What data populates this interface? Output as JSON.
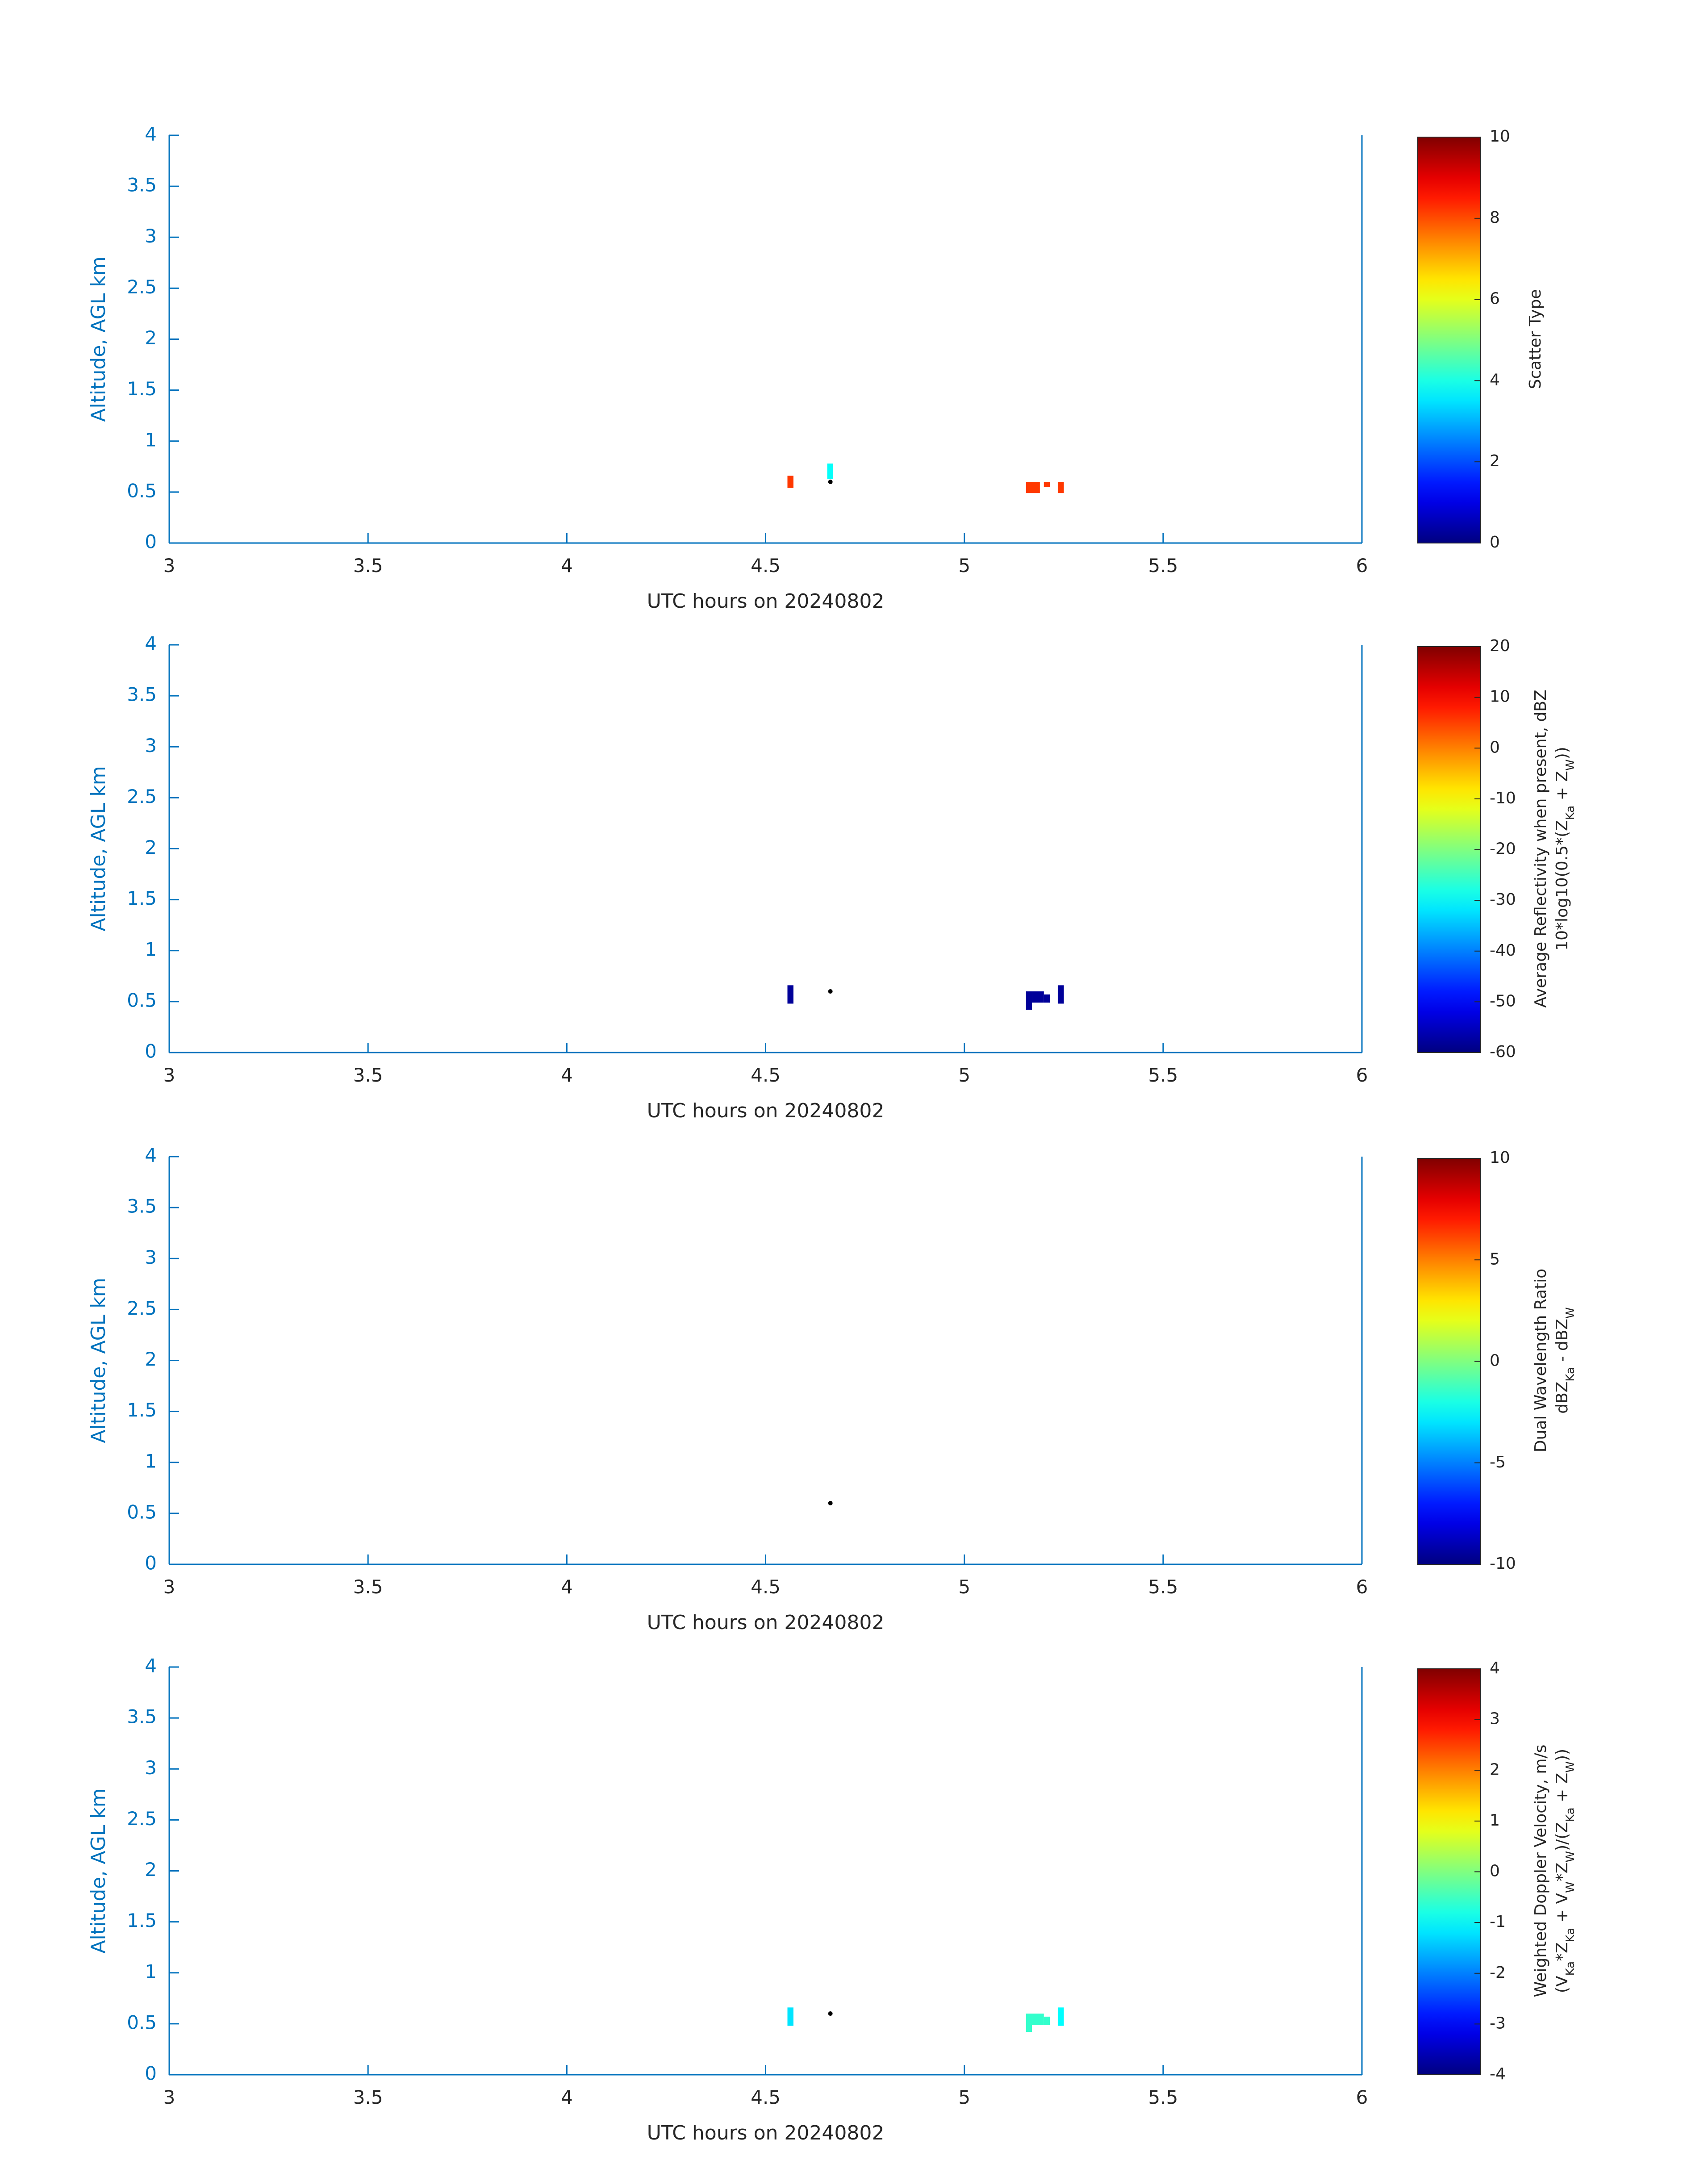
{
  "chart_data": [
    {
      "type": "heatmap",
      "xlabel": "UTC hours on 20240802",
      "ylabel": "Altitude, AGL km",
      "xlim": [
        3,
        6
      ],
      "ylim": [
        0,
        4
      ],
      "xticks": [
        "3",
        "3.5",
        "4",
        "4.5",
        "5",
        "5.5",
        "6"
      ],
      "yticks": [
        "0",
        "0.5",
        "1",
        "1.5",
        "2",
        "2.5",
        "3",
        "3.5",
        "4"
      ],
      "colorbar": {
        "label_lines": [
          "Scatter Type"
        ],
        "clim": [
          0,
          10
        ],
        "ticks": [
          "0",
          "2",
          "4",
          "6",
          "8",
          "10"
        ],
        "colormap": "jet"
      },
      "cells": [
        {
          "x0": 4.555,
          "x1": 4.57,
          "y0": 0.54,
          "y1": 0.66,
          "v": 8.2
        },
        {
          "x0": 4.655,
          "x1": 4.67,
          "y0": 0.63,
          "y1": 0.78,
          "v": 3.8
        },
        {
          "x0": 5.155,
          "x1": 5.19,
          "y0": 0.49,
          "y1": 0.6,
          "v": 8.2
        },
        {
          "x0": 5.2,
          "x1": 5.215,
          "y0": 0.55,
          "y1": 0.6,
          "v": 8.2
        },
        {
          "x0": 5.235,
          "x1": 5.25,
          "y0": 0.49,
          "y1": 0.6,
          "v": 8.2
        }
      ],
      "markers": [
        {
          "x": 4.663,
          "y": 0.6
        }
      ]
    },
    {
      "type": "heatmap",
      "xlabel": "UTC hours on 20240802",
      "ylabel": "Altitude, AGL km",
      "xlim": [
        3,
        6
      ],
      "ylim": [
        0,
        4
      ],
      "xticks": [
        "3",
        "3.5",
        "4",
        "4.5",
        "5",
        "5.5",
        "6"
      ],
      "yticks": [
        "0",
        "0.5",
        "1",
        "1.5",
        "2",
        "2.5",
        "3",
        "3.5",
        "4"
      ],
      "colorbar": {
        "label_lines": [
          "Average Reflectivity when present, dBZ",
          "10*log10(0.5*(Z_Ka + Z_W))"
        ],
        "clim": [
          -60,
          20
        ],
        "ticks": [
          "-60",
          "-50",
          "-40",
          "-30",
          "-20",
          "-10",
          "0",
          "10",
          "20"
        ],
        "colormap": "jet"
      },
      "cells": [
        {
          "x0": 4.555,
          "x1": 4.57,
          "y0": 0.48,
          "y1": 0.66,
          "v": -58
        },
        {
          "x0": 5.155,
          "x1": 5.17,
          "y0": 0.42,
          "y1": 0.6,
          "v": -58
        },
        {
          "x0": 5.17,
          "x1": 5.2,
          "y0": 0.49,
          "y1": 0.6,
          "v": -58
        },
        {
          "x0": 5.2,
          "x1": 5.215,
          "y0": 0.49,
          "y1": 0.57,
          "v": -58
        },
        {
          "x0": 5.235,
          "x1": 5.25,
          "y0": 0.48,
          "y1": 0.66,
          "v": -58
        }
      ],
      "markers": [
        {
          "x": 4.663,
          "y": 0.6
        }
      ]
    },
    {
      "type": "heatmap",
      "xlabel": "UTC hours on 20240802",
      "ylabel": "Altitude, AGL km",
      "xlim": [
        3,
        6
      ],
      "ylim": [
        0,
        4
      ],
      "xticks": [
        "3",
        "3.5",
        "4",
        "4.5",
        "5",
        "5.5",
        "6"
      ],
      "yticks": [
        "0",
        "0.5",
        "1",
        "1.5",
        "2",
        "2.5",
        "3",
        "3.5",
        "4"
      ],
      "colorbar": {
        "label_lines": [
          "Dual Wavelength Ratio",
          "dBZ_Ka - dBZ_W"
        ],
        "clim": [
          -10,
          10
        ],
        "ticks": [
          "-10",
          "-5",
          "0",
          "5",
          "10"
        ],
        "colormap": "jet"
      },
      "cells": [],
      "markers": [
        {
          "x": 4.663,
          "y": 0.6
        }
      ]
    },
    {
      "type": "heatmap",
      "xlabel": "UTC hours on 20240802",
      "ylabel": "Altitude, AGL km",
      "xlim": [
        3,
        6
      ],
      "ylim": [
        0,
        4
      ],
      "xticks": [
        "3",
        "3.5",
        "4",
        "4.5",
        "5",
        "5.5",
        "6"
      ],
      "yticks": [
        "0",
        "0.5",
        "1",
        "1.5",
        "2",
        "2.5",
        "3",
        "3.5",
        "4"
      ],
      "colorbar": {
        "label_lines": [
          "Weighted Doppler Velocity, m/s",
          "(V_Ka*Z_Ka + V_W*Z_W)/(Z_Ka + Z_W))"
        ],
        "clim": [
          -4,
          4
        ],
        "ticks": [
          "-4",
          "-3",
          "-2",
          "-1",
          "0",
          "1",
          "2",
          "3",
          "4"
        ],
        "colormap": "jet"
      },
      "cells": [
        {
          "x0": 4.555,
          "x1": 4.57,
          "y0": 0.48,
          "y1": 0.66,
          "v": -1.2
        },
        {
          "x0": 5.155,
          "x1": 5.17,
          "y0": 0.42,
          "y1": 0.6,
          "v": -0.6
        },
        {
          "x0": 5.17,
          "x1": 5.2,
          "y0": 0.49,
          "y1": 0.6,
          "v": -0.6
        },
        {
          "x0": 5.2,
          "x1": 5.215,
          "y0": 0.49,
          "y1": 0.57,
          "v": -0.6
        },
        {
          "x0": 5.235,
          "x1": 5.25,
          "y0": 0.48,
          "y1": 0.66,
          "v": -1.0
        }
      ],
      "markers": [
        {
          "x": 4.663,
          "y": 0.6
        }
      ]
    }
  ]
}
